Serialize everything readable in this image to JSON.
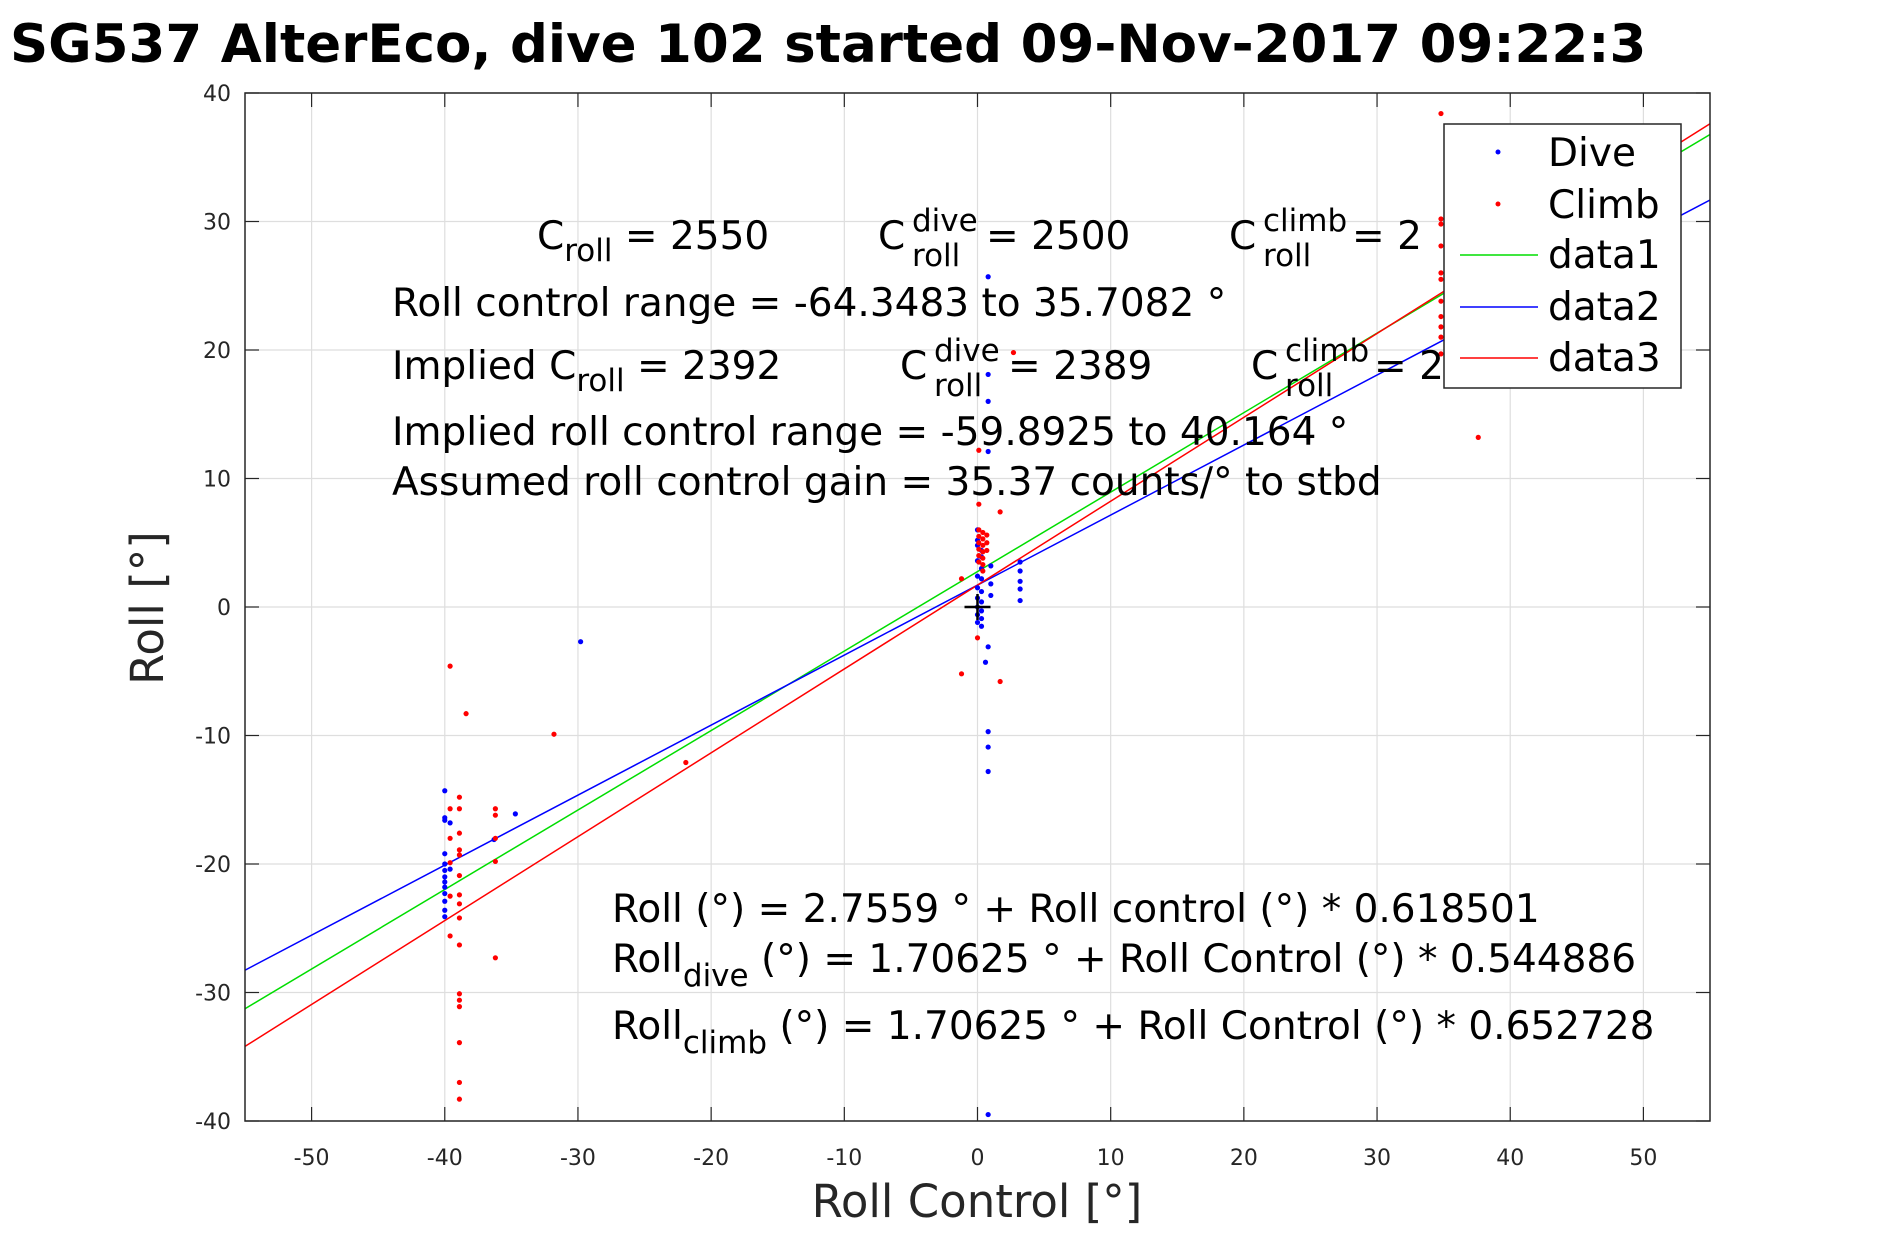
{
  "chart_data": {
    "type": "scatter",
    "title": "SG537 AlterEco, dive 102 started 09-Nov-2017 09:22:3",
    "xlabel": "Roll Control [°]",
    "ylabel": "Roll [°]",
    "xlim": [
      -55,
      55
    ],
    "ylim": [
      -40,
      40
    ],
    "xticks": [
      -50,
      -40,
      -30,
      -20,
      -10,
      0,
      10,
      20,
      30,
      40,
      50
    ],
    "yticks": [
      -40,
      -30,
      -20,
      -10,
      0,
      10,
      20,
      30,
      40
    ],
    "grid": true,
    "legend_position": "top-right",
    "series": [
      {
        "name": "Dive",
        "kind": "points",
        "color": "#0000ff",
        "points": [
          [
            -40,
            -14.3
          ],
          [
            -40,
            -16.4
          ],
          [
            -40,
            -16.6
          ],
          [
            -40,
            -19.2
          ],
          [
            -40,
            -20.0
          ],
          [
            -40,
            -20.5
          ],
          [
            -40,
            -21.0
          ],
          [
            -40,
            -21.4
          ],
          [
            -40,
            -21.8
          ],
          [
            -40,
            -22.3
          ],
          [
            -40,
            -22.9
          ],
          [
            -40,
            -23.6
          ],
          [
            -40,
            -24.1
          ],
          [
            -39.6,
            -16.8
          ],
          [
            -39.6,
            -20.4
          ],
          [
            -36.3,
            -18.1
          ],
          [
            -34.7,
            -16.1
          ],
          [
            -29.8,
            -2.7
          ],
          [
            0,
            6.0
          ],
          [
            0,
            5.2
          ],
          [
            0,
            4.8
          ],
          [
            0,
            3.6
          ],
          [
            0,
            2.4
          ],
          [
            0,
            1.5
          ],
          [
            0,
            0.7
          ],
          [
            0,
            0.0
          ],
          [
            0,
            -0.6
          ],
          [
            0,
            -1.2
          ],
          [
            0.3,
            4.4
          ],
          [
            0.3,
            3.9
          ],
          [
            0.3,
            3.0
          ],
          [
            0.3,
            2.2
          ],
          [
            0.3,
            1.2
          ],
          [
            0.3,
            0.4
          ],
          [
            0.3,
            -0.3
          ],
          [
            0.3,
            -0.9
          ],
          [
            0.3,
            -1.5
          ],
          [
            0.6,
            -4.3
          ],
          [
            0.8,
            25.7
          ],
          [
            0.8,
            18.1
          ],
          [
            0.8,
            16.0
          ],
          [
            0.8,
            12.1
          ],
          [
            0.8,
            -3.1
          ],
          [
            0.8,
            -9.7
          ],
          [
            0.8,
            -10.9
          ],
          [
            0.8,
            -12.8
          ],
          [
            0.8,
            -39.5
          ],
          [
            1.0,
            3.2
          ],
          [
            1.0,
            1.8
          ],
          [
            1.0,
            0.9
          ],
          [
            3.2,
            3.5
          ],
          [
            3.2,
            2.8
          ],
          [
            3.2,
            2.0
          ],
          [
            3.2,
            1.4
          ],
          [
            3.2,
            0.5
          ]
        ]
      },
      {
        "name": "Climb",
        "kind": "points",
        "color": "#ff0000",
        "points": [
          [
            -39.6,
            -4.6
          ],
          [
            -38.4,
            -8.3
          ],
          [
            -39.6,
            -15.7
          ],
          [
            -39.6,
            -18.0
          ],
          [
            -39.6,
            -19.9
          ],
          [
            -39.6,
            -22.5
          ],
          [
            -39.6,
            -25.6
          ],
          [
            -38.9,
            -14.8
          ],
          [
            -38.9,
            -15.7
          ],
          [
            -38.9,
            -17.6
          ],
          [
            -38.9,
            -18.9
          ],
          [
            -38.9,
            -19.3
          ],
          [
            -38.9,
            -20.9
          ],
          [
            -38.9,
            -22.4
          ],
          [
            -38.9,
            -23.1
          ],
          [
            -38.9,
            -24.2
          ],
          [
            -38.9,
            -26.3
          ],
          [
            -38.9,
            -30.1
          ],
          [
            -38.9,
            -30.6
          ],
          [
            -38.9,
            -31.1
          ],
          [
            -38.9,
            -33.9
          ],
          [
            -38.9,
            -37.0
          ],
          [
            -38.9,
            -38.3
          ],
          [
            -36.2,
            -15.7
          ],
          [
            -36.2,
            -16.2
          ],
          [
            -36.2,
            -18.0
          ],
          [
            -36.2,
            -19.8
          ],
          [
            -36.2,
            -27.3
          ],
          [
            -31.8,
            -9.9
          ],
          [
            -21.9,
            -12.1
          ],
          [
            -1.2,
            -5.2
          ],
          [
            -1.2,
            2.2
          ],
          [
            0,
            -2.4
          ],
          [
            0.1,
            12.2
          ],
          [
            0.1,
            8.0
          ],
          [
            0.1,
            6.0
          ],
          [
            0.1,
            5.5
          ],
          [
            0.1,
            5.0
          ],
          [
            0.1,
            4.5
          ],
          [
            0.1,
            4.0
          ],
          [
            0.1,
            3.5
          ],
          [
            0.4,
            5.8
          ],
          [
            0.4,
            5.3
          ],
          [
            0.4,
            4.8
          ],
          [
            0.4,
            4.3
          ],
          [
            0.4,
            3.8
          ],
          [
            0.4,
            3.3
          ],
          [
            0.4,
            2.8
          ],
          [
            0.7,
            5.6
          ],
          [
            0.7,
            5.0
          ],
          [
            0.7,
            4.4
          ],
          [
            1.7,
            7.4
          ],
          [
            1.7,
            -5.8
          ],
          [
            2.7,
            19.8
          ],
          [
            34.8,
            38.4
          ],
          [
            34.8,
            30.2
          ],
          [
            34.8,
            29.8
          ],
          [
            34.8,
            28.1
          ],
          [
            34.8,
            26.0
          ],
          [
            34.8,
            25.5
          ],
          [
            34.8,
            23.8
          ],
          [
            34.8,
            22.6
          ],
          [
            34.8,
            21.8
          ],
          [
            34.8,
            21.0
          ],
          [
            34.8,
            19.7
          ],
          [
            37.6,
            13.2
          ]
        ]
      },
      {
        "name": "data1",
        "kind": "line",
        "color": "#00dd00",
        "intercept": 2.7559,
        "slope": 0.618501
      },
      {
        "name": "data2",
        "kind": "line",
        "color": "#0000ff",
        "intercept": 1.70625,
        "slope": 0.544886
      },
      {
        "name": "data3",
        "kind": "line",
        "color": "#ff0000",
        "intercept": 1.70625,
        "slope": 0.652728
      }
    ],
    "marker": {
      "x": 0,
      "y": 0,
      "symbol": "+"
    },
    "annotations": {
      "c_roll": {
        "base": "C",
        "sub": "roll",
        "text": " = 2550"
      },
      "c_roll_dive": {
        "base": "C",
        "sup": "dive",
        "sub": "roll",
        "text": " = 2500"
      },
      "c_roll_climb": {
        "base": "C",
        "sup": "climb",
        "sub": "roll",
        "text": " = 2"
      },
      "range": "Roll control range = -64.3483 to 35.7082 °",
      "implied_c_roll": {
        "base": "Implied C",
        "sub": "roll",
        "text": " = 2392"
      },
      "implied_c_roll_dive": {
        "base": "C",
        "sup": "dive",
        "sub": "roll",
        "text": " = 2389"
      },
      "implied_c_roll_climb": {
        "base": "C",
        "sup": "climb",
        "sub": "roll",
        "text": " = 2"
      },
      "implied_range": "Implied roll control range = -59.8925 to 40.164 °",
      "gain": "Assumed roll control gain = 35.37 counts/° to stbd",
      "fit_all": "Roll (°) = 2.7559 ° + Roll control (°) * 0.618501",
      "fit_dive": {
        "base": "Roll",
        "sub": "dive",
        "text": " (°) = 1.70625 ° + Roll Control (°) * 0.544886"
      },
      "fit_climb": {
        "base": "Roll",
        "sub": "climb",
        "text": " (°) = 1.70625 ° + Roll Control (°) * 0.652728"
      }
    }
  }
}
